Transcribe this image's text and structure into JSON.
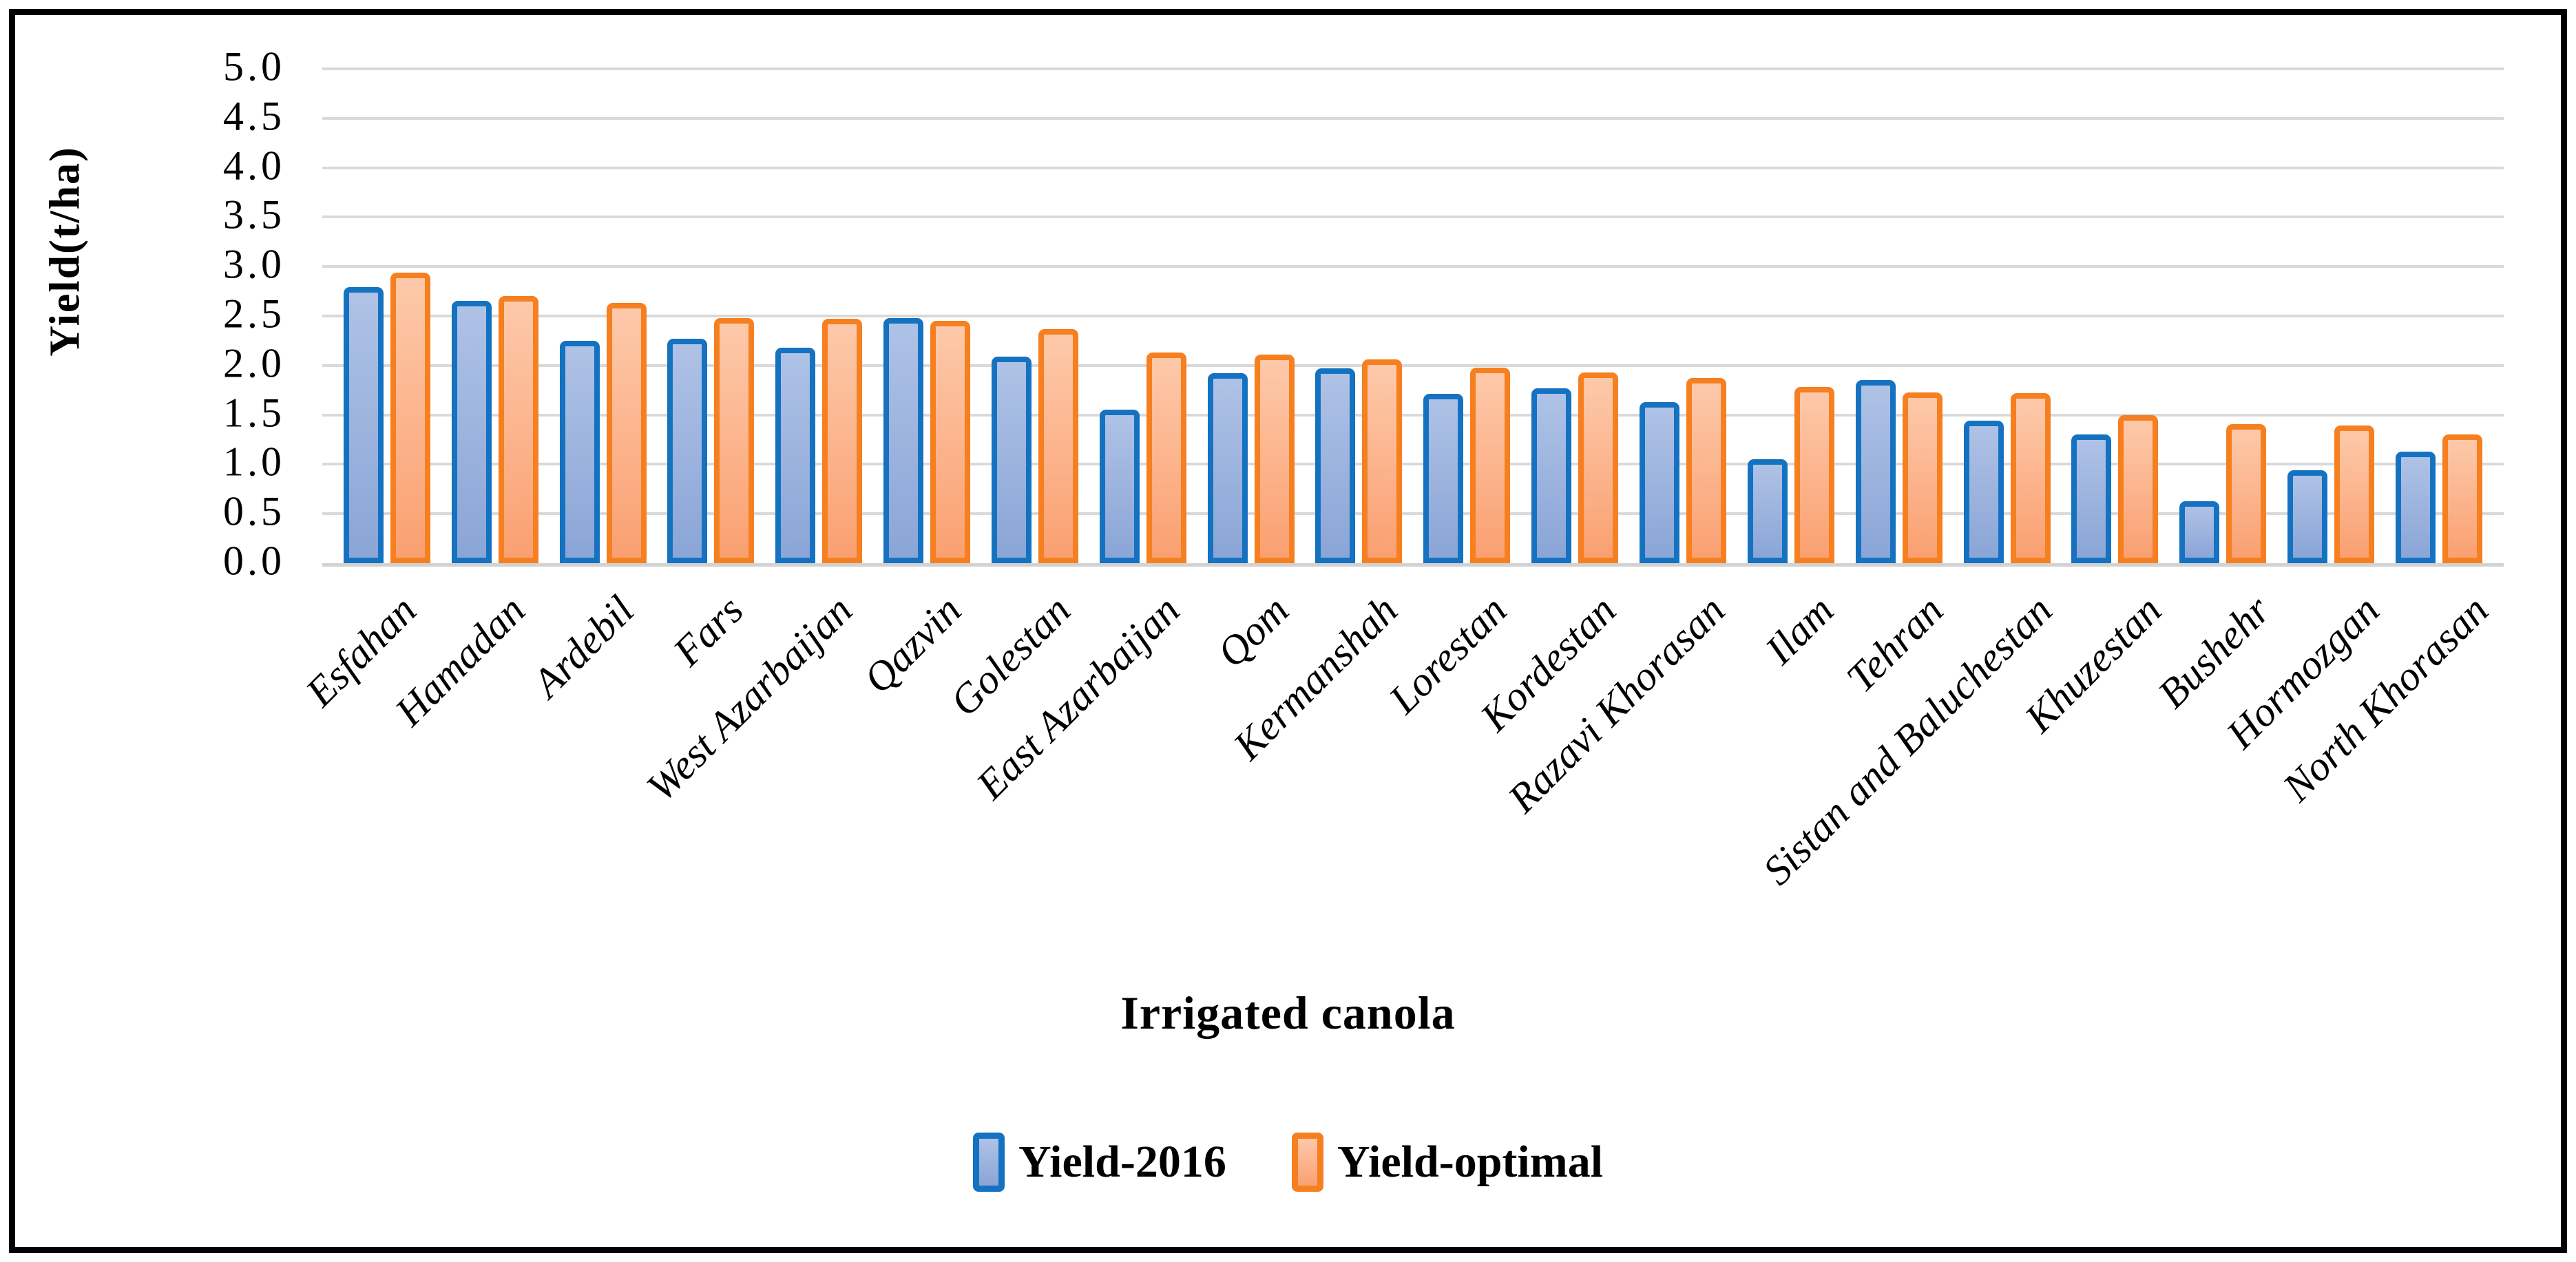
{
  "figure": {
    "ylabel": "Yield(t/ha)",
    "xlabel": "Irrigated canola",
    "legend": [
      {
        "label": "Yield-2016"
      },
      {
        "label": "Yield-optimal"
      }
    ]
  },
  "chart_data": {
    "type": "bar",
    "title": "",
    "xlabel": "Irrigated canola",
    "ylabel": "Yield(t/ha)",
    "ylim": [
      0,
      5
    ],
    "ytick_step": 0.5,
    "yticks": [
      "5.0",
      "4.5",
      "4.0",
      "3.5",
      "3.0",
      "2.5",
      "2.0",
      "1.5",
      "1.0",
      "0.5",
      "0.0"
    ],
    "grid": "horizontal-gridlines-on",
    "legend_position": "bottom-center",
    "categories": [
      "Esfahan",
      "Hamadan",
      "Ardebil",
      "Fars",
      "West Azarbaijan",
      "Qazvin",
      "Golestan",
      "East Azarbaijan",
      "Qom",
      "Kermanshah",
      "Lorestan",
      "Kordestan",
      "Razavi Khorasan",
      "Ilam",
      "Tehran",
      "Sistan and Baluchestan",
      "Khuzestan",
      "Bushehr",
      "Hormozgan",
      "North Khorasan"
    ],
    "series": [
      {
        "name": "Yield-2016",
        "color_border": "#1572C1",
        "color_fill": "#9FB4DC",
        "values": [
          2.79,
          2.65,
          2.25,
          2.27,
          2.18,
          2.48,
          2.09,
          1.55,
          1.92,
          1.97,
          1.71,
          1.77,
          1.63,
          1.05,
          1.85,
          1.44,
          1.3,
          0.63,
          0.94,
          1.13
        ]
      },
      {
        "name": "Yield-optimal",
        "color_border": "#F67F20",
        "color_fill": "#FCB88E",
        "values": [
          2.94,
          2.7,
          2.63,
          2.48,
          2.47,
          2.45,
          2.37,
          2.13,
          2.11,
          2.06,
          1.98,
          1.93,
          1.87,
          1.78,
          1.73,
          1.72,
          1.5,
          1.41,
          1.39,
          1.3
        ]
      }
    ],
    "gridline_color": "#D9D9D9",
    "axis_line_color": "#D2D2D2"
  }
}
